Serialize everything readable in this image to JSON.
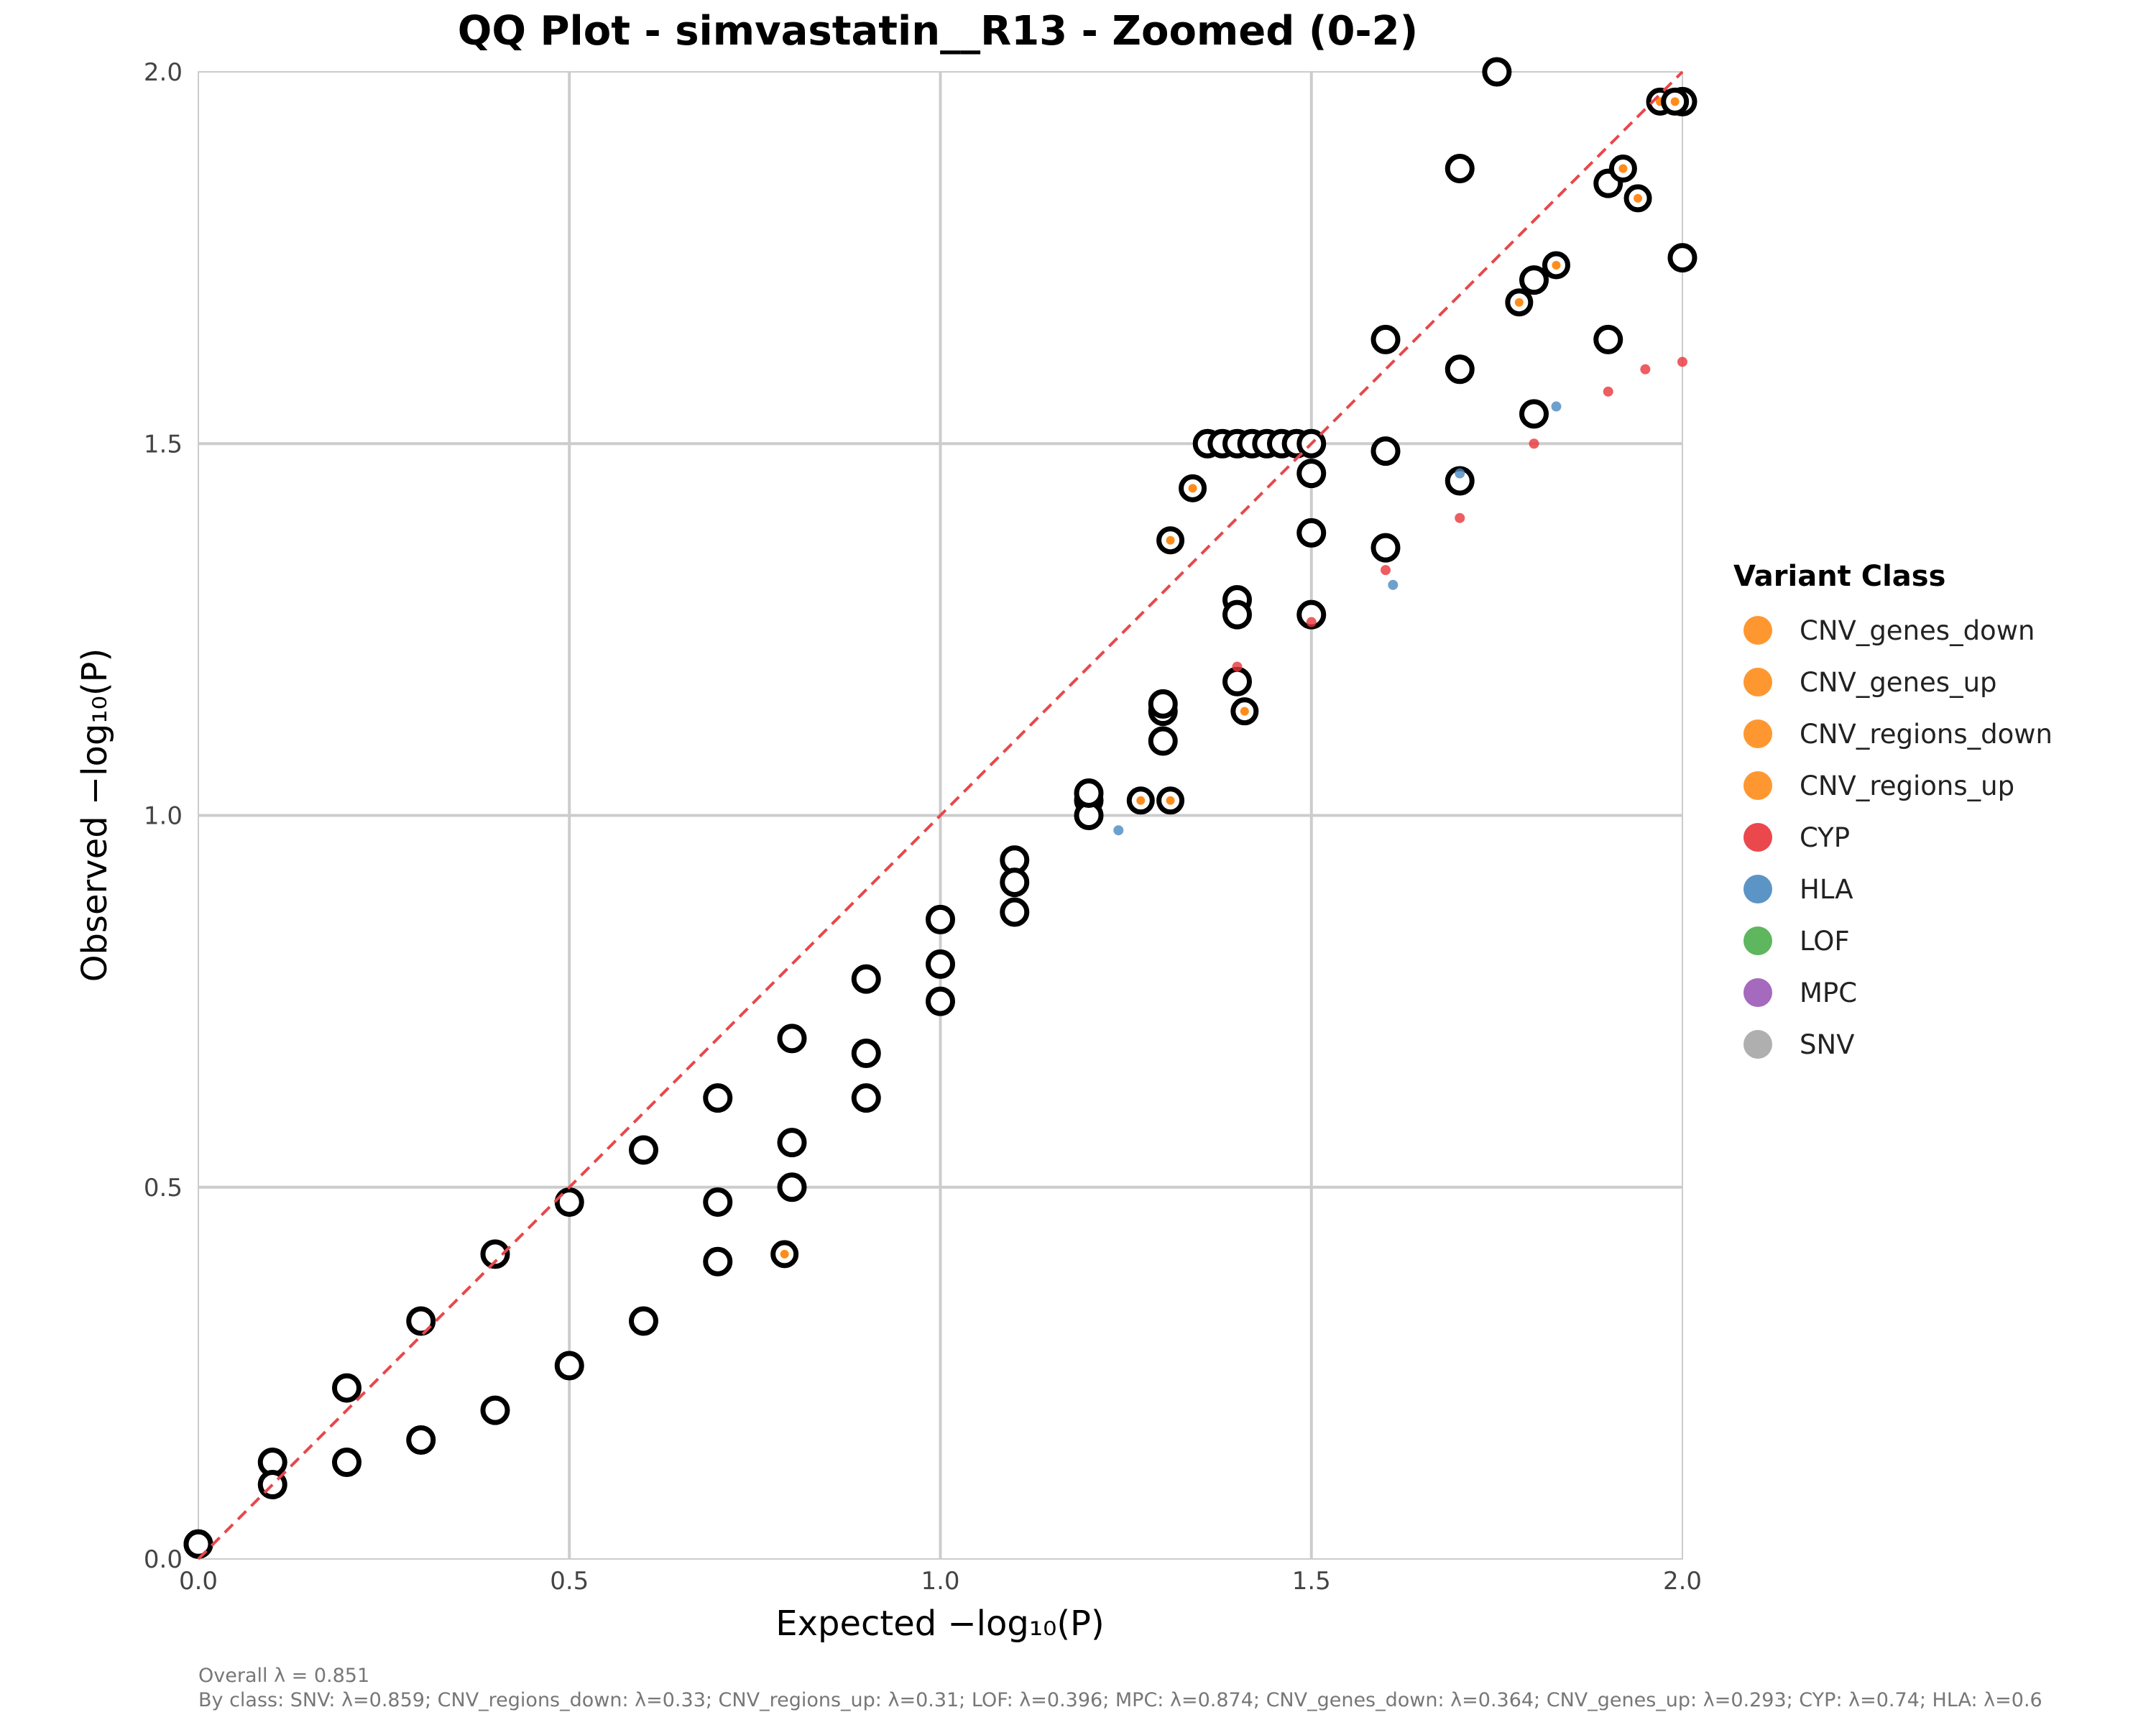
{
  "chart_data": {
    "type": "scatter",
    "title": "QQ Plot - simvastatin__R13 - Zoomed (0-2)",
    "xlabel": "Expected −log₁₀(P)",
    "ylabel": "Observed −log₁₀(P)",
    "xlim": [
      0,
      2
    ],
    "ylim": [
      0,
      2
    ],
    "x_ticks": [
      "0.0",
      "0.5",
      "1.0",
      "1.5",
      "2.0"
    ],
    "y_ticks": [
      "0.0",
      "0.5",
      "1.0",
      "1.5",
      "2.0"
    ],
    "grid": true,
    "reference_line": {
      "style": "dashed",
      "color": "#e8474a",
      "from": [
        0,
        0
      ],
      "to": [
        2,
        2
      ]
    },
    "legend": {
      "title": "Variant Class",
      "placement": "right",
      "entries": [
        {
          "label": "CNV_genes_down",
          "color": "#ff8c1a"
        },
        {
          "label": "CNV_genes_up",
          "color": "#ff8c1a"
        },
        {
          "label": "CNV_regions_down",
          "color": "#ff8c1a"
        },
        {
          "label": "CNV_regions_up",
          "color": "#ff8c1a"
        },
        {
          "label": "CYP",
          "color": "#e8343a"
        },
        {
          "label": "HLA",
          "color": "#4a88c0"
        },
        {
          "label": "LOF",
          "color": "#4cae4c"
        },
        {
          "label": "MPC",
          "color": "#9b59b6"
        },
        {
          "label": "SNV",
          "color": "#a6a6a6"
        }
      ]
    },
    "series": [
      {
        "name": "SNV",
        "color": "#000000",
        "outlined": true,
        "points": [
          [
            0.0,
            0.02
          ],
          [
            0.1,
            0.13
          ],
          [
            0.2,
            0.23
          ],
          [
            0.3,
            0.32
          ],
          [
            0.4,
            0.41
          ],
          [
            0.5,
            0.48
          ],
          [
            0.6,
            0.55
          ],
          [
            0.7,
            0.62
          ],
          [
            0.8,
            0.7
          ],
          [
            0.9,
            0.78
          ],
          [
            1.0,
            0.86
          ],
          [
            1.1,
            0.94
          ],
          [
            1.2,
            1.02
          ],
          [
            1.3,
            1.1
          ],
          [
            1.4,
            1.18
          ],
          [
            1.5,
            1.27
          ],
          [
            1.6,
            1.36
          ],
          [
            1.7,
            1.45
          ],
          [
            1.8,
            1.54
          ],
          [
            1.9,
            1.64
          ],
          [
            2.0,
            1.75
          ]
        ]
      },
      {
        "name": "CNV",
        "color": "#000000",
        "outlined": true,
        "points": [
          [
            0.0,
            0.02
          ],
          [
            0.1,
            0.1
          ],
          [
            0.2,
            0.13
          ],
          [
            0.3,
            0.16
          ],
          [
            0.4,
            0.2
          ],
          [
            0.5,
            0.26
          ],
          [
            0.6,
            0.32
          ],
          [
            0.7,
            0.4
          ],
          [
            0.8,
            0.5
          ],
          [
            0.9,
            0.62
          ],
          [
            1.0,
            0.75
          ],
          [
            1.1,
            0.87
          ],
          [
            1.2,
            1.0
          ],
          [
            1.3,
            1.14
          ],
          [
            1.4,
            1.29
          ],
          [
            1.5,
            1.46
          ],
          [
            1.6,
            1.64
          ],
          [
            1.7,
            1.87
          ],
          [
            1.75,
            2.0
          ]
        ]
      },
      {
        "name": "CNV_regions",
        "color": "#000000",
        "outlined": true,
        "points": [
          [
            0.7,
            0.48
          ],
          [
            0.8,
            0.56
          ],
          [
            0.9,
            0.68
          ],
          [
            1.0,
            0.8
          ],
          [
            1.1,
            0.91
          ],
          [
            1.2,
            1.03
          ],
          [
            1.3,
            1.15
          ],
          [
            1.4,
            1.27
          ],
          [
            1.5,
            1.38
          ],
          [
            1.6,
            1.49
          ],
          [
            1.7,
            1.6
          ],
          [
            1.8,
            1.72
          ],
          [
            1.9,
            1.85
          ],
          [
            2.0,
            1.96
          ]
        ]
      },
      {
        "name": "CYP",
        "color": "#e8343a",
        "outlined": false,
        "points": [
          [
            1.4,
            1.2
          ],
          [
            1.5,
            1.26
          ],
          [
            1.6,
            1.33
          ],
          [
            1.7,
            1.4
          ],
          [
            1.8,
            1.5
          ],
          [
            1.9,
            1.57
          ],
          [
            1.95,
            1.6
          ],
          [
            2.0,
            1.61
          ]
        ]
      },
      {
        "name": "HLA",
        "color": "#4a88c0",
        "outlined": false,
        "points": [
          [
            1.24,
            0.98
          ],
          [
            1.61,
            1.31
          ],
          [
            1.7,
            1.46
          ],
          [
            1.83,
            1.55
          ]
        ]
      },
      {
        "name": "Band",
        "color": "#000000",
        "outlined": true,
        "points": [
          [
            1.36,
            1.5
          ],
          [
            1.38,
            1.5
          ],
          [
            1.4,
            1.5
          ],
          [
            1.42,
            1.5
          ],
          [
            1.44,
            1.5
          ],
          [
            1.46,
            1.5
          ],
          [
            1.48,
            1.5
          ],
          [
            1.5,
            1.5
          ]
        ]
      }
    ],
    "highlights": [
      [
        1.31,
        1.37
      ],
      [
        1.34,
        1.44
      ],
      [
        1.27,
        1.02
      ],
      [
        1.31,
        1.02
      ],
      [
        1.41,
        1.14
      ],
      [
        0.79,
        0.41
      ],
      [
        1.94,
        1.83
      ],
      [
        1.97,
        1.96
      ],
      [
        1.99,
        1.96
      ],
      [
        1.92,
        1.87
      ],
      [
        1.83,
        1.74
      ],
      [
        1.78,
        1.69
      ]
    ]
  },
  "footer": {
    "overall": "Overall λ = 0.851",
    "by_class": "By class: SNV: λ=0.859; CNV_regions_down: λ=0.33; CNV_regions_up: λ=0.31; LOF: λ=0.396; MPC: λ=0.874; CNV_genes_down: λ=0.364; CNV_genes_up: λ=0.293; CYP: λ=0.74; HLA: λ=0.6"
  }
}
